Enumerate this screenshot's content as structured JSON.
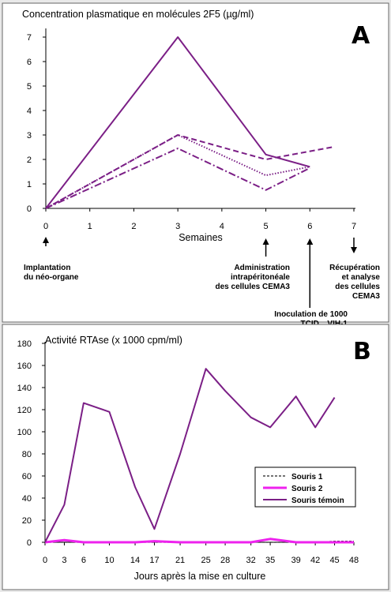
{
  "chart_data": [
    {
      "panel": "A",
      "type": "line",
      "title": "Concentration plasmatique en molécules 2F5 (µg/ml)",
      "xlabel": "Semaines",
      "ylabel": "",
      "x": [
        0,
        1,
        2,
        3,
        4,
        5,
        6,
        7
      ],
      "xlim": [
        0,
        7
      ],
      "ylim": [
        0,
        7
      ],
      "yticks": [
        0,
        1,
        2,
        3,
        4,
        5,
        6,
        7
      ],
      "grid": false,
      "color": "#7b1f86",
      "series": [
        {
          "x": [
            0,
            3,
            5,
            6
          ],
          "values": [
            0,
            7.0,
            2.2,
            1.7
          ],
          "style": "solid"
        },
        {
          "x": [
            0,
            3,
            5,
            6.5
          ],
          "values": [
            0,
            3.0,
            2.0,
            2.5
          ],
          "style": "dashed"
        },
        {
          "x": [
            0,
            3,
            5,
            6
          ],
          "values": [
            0,
            3.0,
            1.35,
            1.7
          ],
          "style": "dotted"
        },
        {
          "x": [
            0,
            3,
            5,
            6
          ],
          "values": [
            0,
            2.45,
            0.75,
            1.65
          ],
          "style": "dashdot"
        }
      ],
      "annotations": [
        {
          "x": 0,
          "direction": "up",
          "lines": [
            "Implantation",
            "du néo-organe"
          ]
        },
        {
          "x": 5,
          "direction": "up",
          "lines": [
            "Administration",
            "intrapéritonéale",
            "des cellules CEMA3"
          ]
        },
        {
          "x": 6,
          "direction": "up",
          "lines": [
            "Inoculation de 1000",
            "TCID50 VIH-1"
          ]
        },
        {
          "x": 7,
          "direction": "down",
          "lines": [
            "Récupération",
            "et analyse",
            "des cellules",
            "CEMA3"
          ]
        }
      ]
    },
    {
      "panel": "B",
      "type": "line",
      "title": "Activité RTAse (x 1000 cpm/ml)",
      "xlabel": "Jours après la mise en culture",
      "ylabel": "",
      "x": [
        0,
        3,
        6,
        10,
        14,
        17,
        21,
        25,
        28,
        32,
        35,
        39,
        42,
        45,
        48
      ],
      "xlim": [
        0,
        48
      ],
      "ylim": [
        0,
        180
      ],
      "yticks": [
        0,
        20,
        40,
        60,
        80,
        100,
        120,
        140,
        160,
        180
      ],
      "grid": false,
      "legend": "bottom-right",
      "series": [
        {
          "name": "Souris 1",
          "color": "#222222",
          "style": "dashed",
          "x": [
            0,
            3,
            6,
            10,
            14,
            17,
            21,
            25,
            28,
            32,
            35,
            39,
            42,
            45,
            48
          ],
          "values": [
            0,
            0,
            0,
            0,
            0,
            0,
            0,
            0,
            0,
            0,
            0,
            0,
            0,
            1,
            1
          ]
        },
        {
          "name": "Souris 2",
          "color": "#ee22ee",
          "style": "solid",
          "x": [
            0,
            3,
            6,
            10,
            14,
            17,
            21,
            25,
            28,
            32,
            35,
            39,
            42,
            45,
            48
          ],
          "values": [
            0,
            2,
            0,
            0,
            0,
            1,
            0,
            0,
            0,
            0,
            3,
            0,
            0,
            0,
            0
          ]
        },
        {
          "name": "Souris témoin",
          "color": "#7b1f86",
          "style": "solid",
          "x": [
            0,
            3,
            6,
            10,
            14,
            17,
            21,
            25,
            28,
            32,
            35,
            39,
            42,
            45
          ],
          "values": [
            0,
            34,
            126,
            118,
            50,
            12,
            80,
            157,
            137,
            113,
            104,
            132,
            104,
            131
          ]
        }
      ]
    }
  ]
}
